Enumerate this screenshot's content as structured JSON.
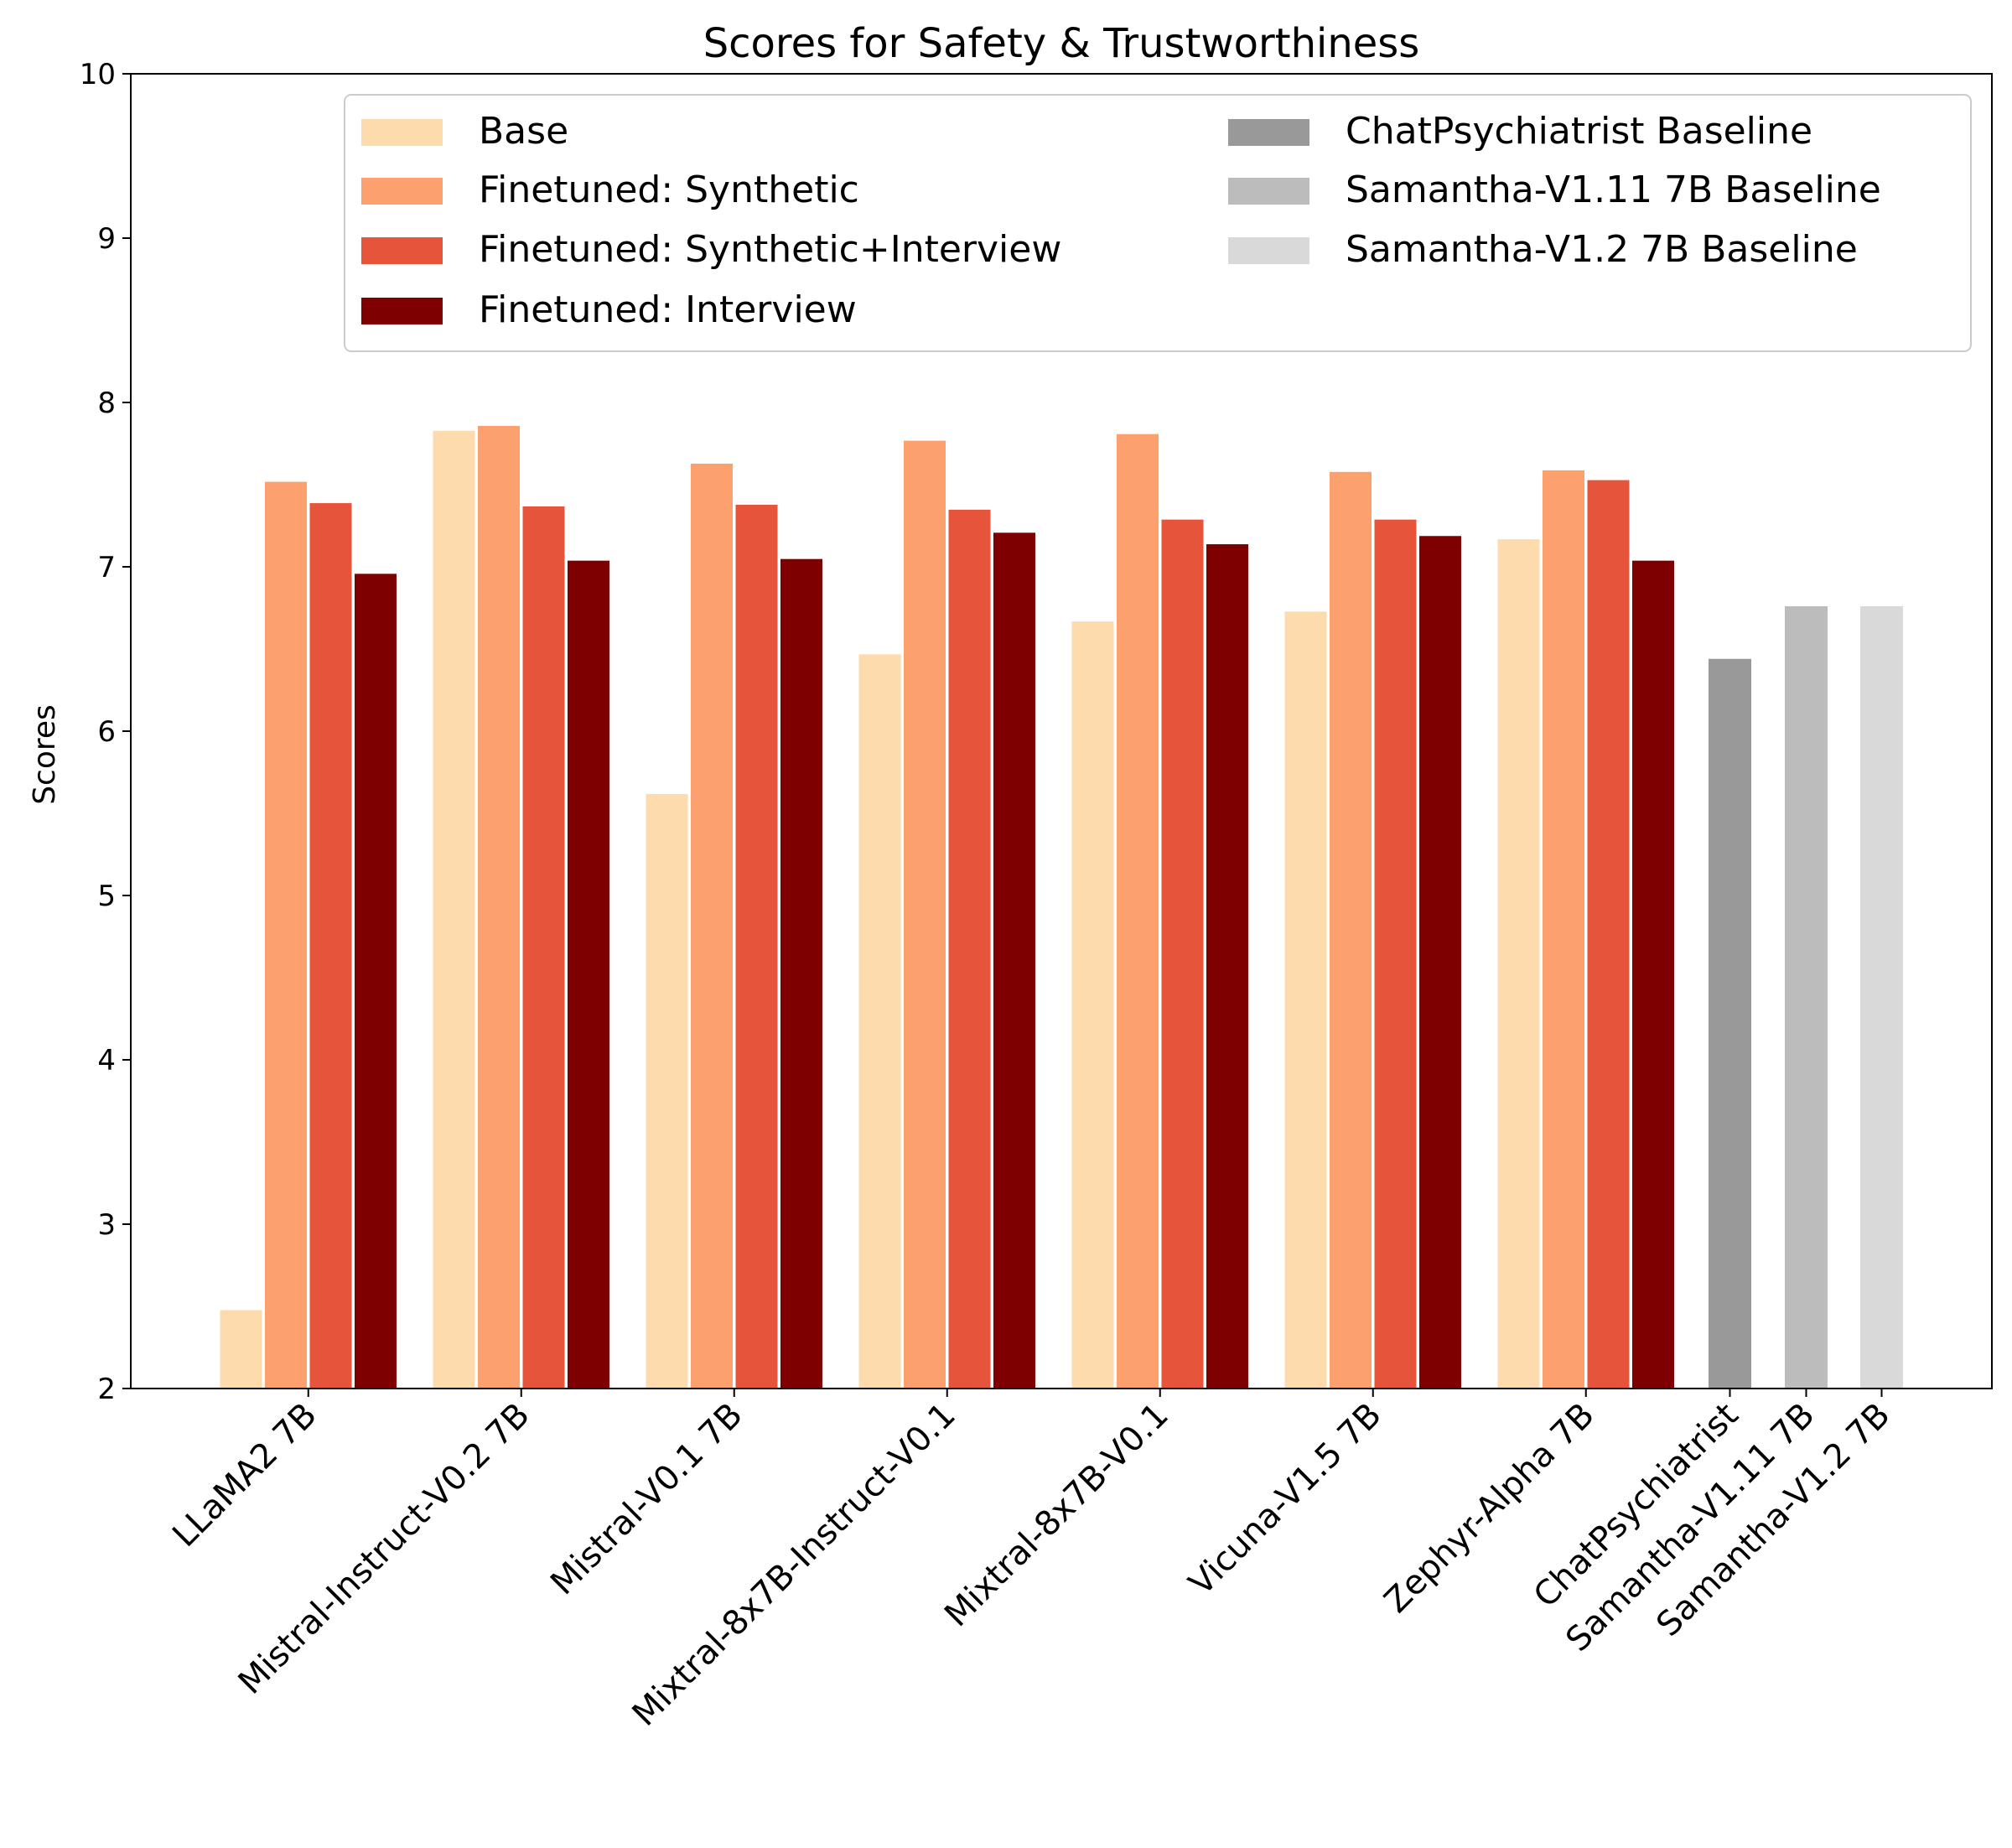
{
  "chart_data": {
    "type": "bar",
    "title": "Scores for Safety & Trustworthiness",
    "xlabel": "",
    "ylabel": "Scores",
    "ylim": [
      2,
      10
    ],
    "yticks": [
      "2",
      "3",
      "4",
      "5",
      "6",
      "7",
      "8",
      "9",
      "10"
    ],
    "grid": false,
    "legend_position": "top-right",
    "categories": [
      "LLaMA2 7B",
      "Mistral-Instruct-V0.2 7B",
      "Mistral-V0.1 7B",
      "Mixtral-8x7B-Instruct-V0.1",
      "Mixtral-8x7B-V0.1",
      "Vicuna-V1.5 7B",
      "Zephyr-Alpha 7B"
    ],
    "series": [
      {
        "name": "Base",
        "color": "#fddbac",
        "values": [
          2.48,
          7.83,
          5.62,
          6.47,
          6.67,
          6.73,
          7.17
        ]
      },
      {
        "name": "Finetuned: Synthetic",
        "color": "#fca06e",
        "values": [
          7.52,
          7.86,
          7.63,
          7.77,
          7.81,
          7.58,
          7.59
        ]
      },
      {
        "name": "Finetuned: Synthetic+Interview",
        "color": "#e6553b",
        "values": [
          7.39,
          7.37,
          7.38,
          7.35,
          7.29,
          7.29,
          7.53
        ]
      },
      {
        "name": "Finetuned: Interview",
        "color": "#7f0000",
        "values": [
          6.96,
          7.04,
          7.05,
          7.21,
          7.14,
          7.19,
          7.04
        ]
      }
    ],
    "baseline_categories": [
      "ChatPsychiatrist",
      "Samantha-V1.11 7B",
      "Samantha-V1.2 7B"
    ],
    "baselines": [
      {
        "name": "ChatPsychiatrist Baseline",
        "color": "#999999",
        "value": 6.44
      },
      {
        "name": "Samantha-V1.11 7B Baseline",
        "color": "#bcbcbc",
        "value": 6.76
      },
      {
        "name": "Samantha-V1.2 7B Baseline",
        "color": "#d9d9d9",
        "value": 6.76
      }
    ]
  }
}
